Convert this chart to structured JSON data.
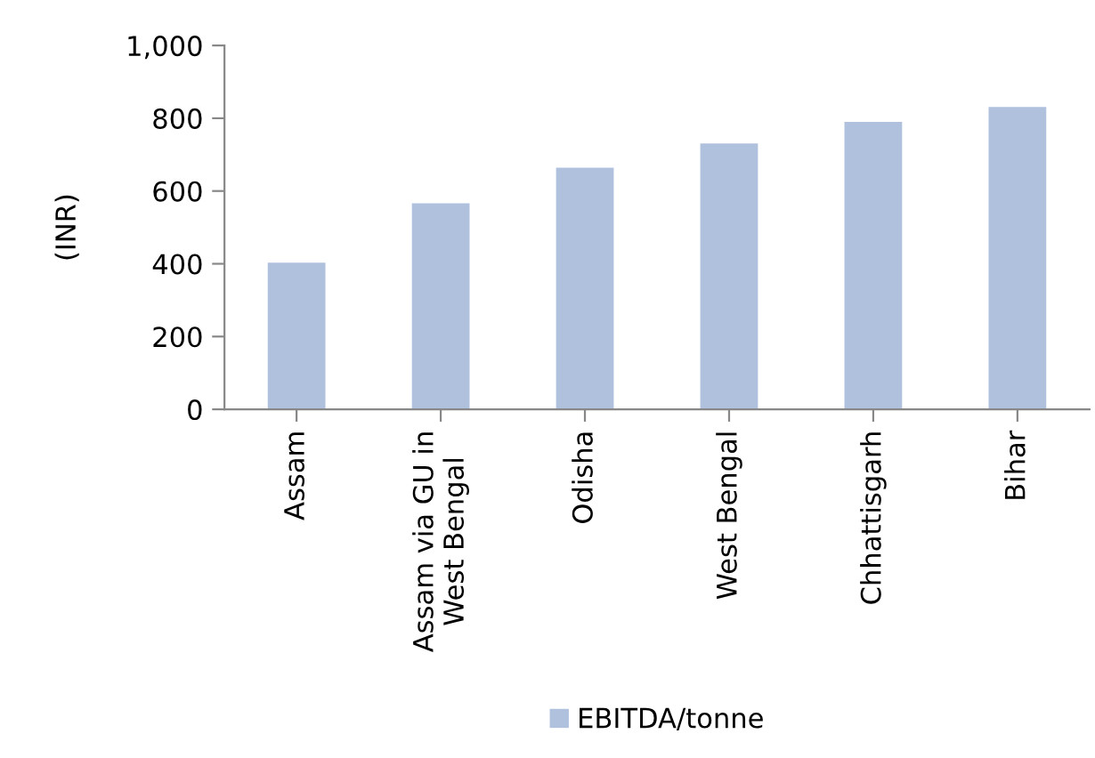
{
  "chart_data": {
    "type": "bar",
    "ylabel": "(INR)",
    "categories": [
      "Assam",
      "Assam via GU in\nWest Bengal",
      "Odisha",
      "West Bengal",
      "Chhattisgarh",
      "Bihar"
    ],
    "series": [
      {
        "name": "EBITDA/tonne",
        "color": "#b0c1de",
        "values": [
          403,
          566,
          664,
          731,
          790,
          831
        ]
      }
    ],
    "ylim": [
      0,
      1000
    ],
    "yticks": [
      0,
      200,
      400,
      600,
      800,
      {
        "value": 1000,
        "label": "1,000"
      }
    ],
    "grid": false,
    "legend": "bottom"
  }
}
